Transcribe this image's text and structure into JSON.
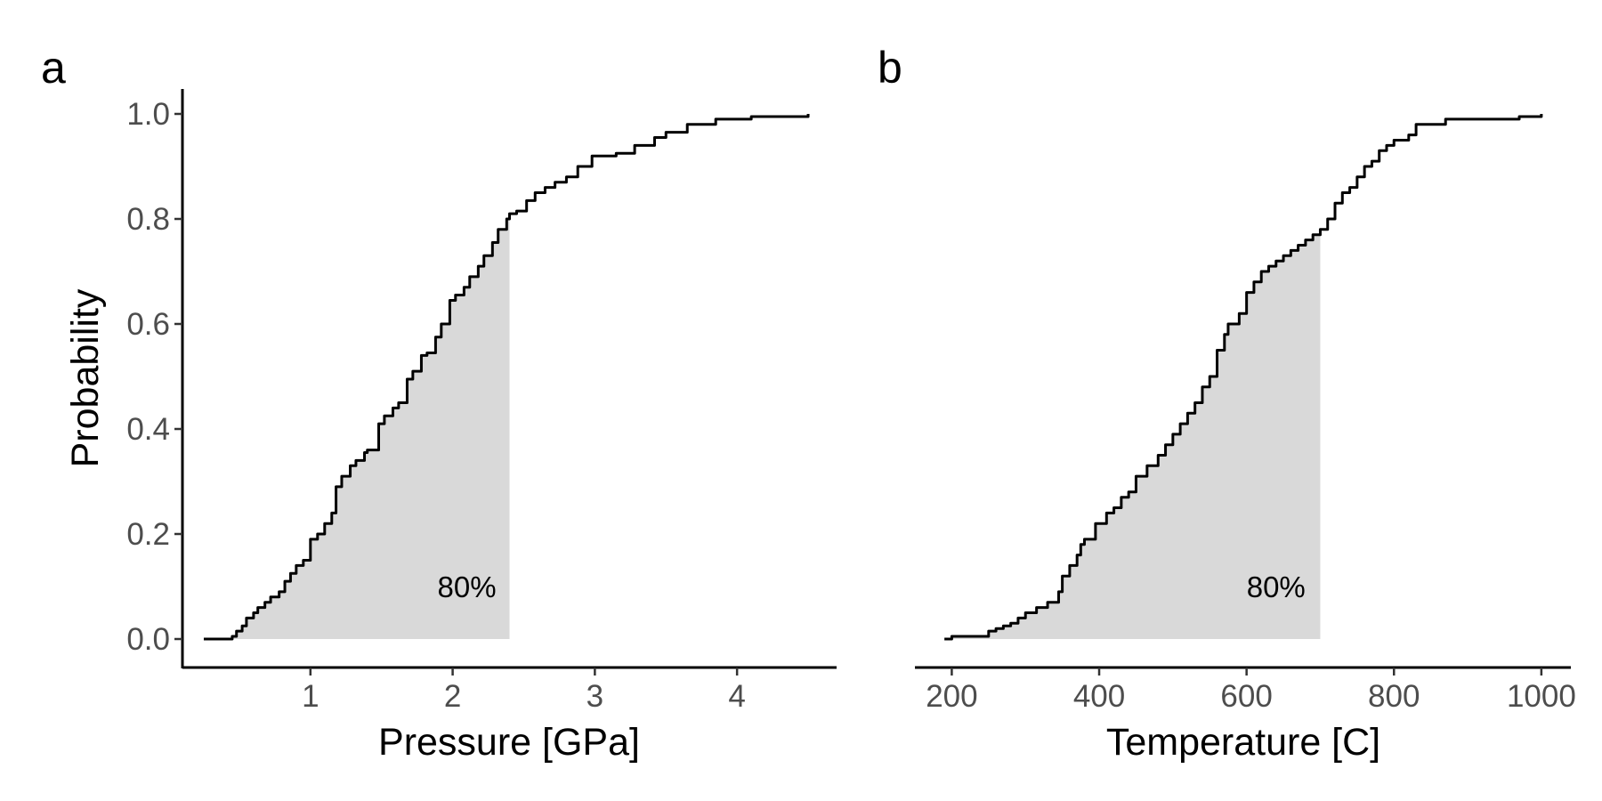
{
  "chart_data": [
    {
      "type": "line",
      "panel": "a",
      "xlabel": "Pressure [GPa]",
      "ylabel": "Probability",
      "xlim": [
        0.1,
        4.7
      ],
      "ylim": [
        -0.05,
        1.05
      ],
      "xticks": [
        1,
        2,
        3,
        4
      ],
      "xtick_labels": [
        "1",
        "2",
        "3",
        "4"
      ],
      "yticks": [
        0.0,
        0.2,
        0.4,
        0.6,
        0.8,
        1.0
      ],
      "ytick_labels": [
        "0.0",
        "0.2",
        "0.4",
        "0.6",
        "0.8",
        "1.0"
      ],
      "step": true,
      "fill_to_x": 2.4,
      "fill_color": "#d9d9d9",
      "annotation": {
        "text": "80%",
        "x": 2.1,
        "y": 0.1
      },
      "series": [
        {
          "x": [
            0.25,
            0.45,
            0.48,
            0.52,
            0.55,
            0.6,
            0.63,
            0.68,
            0.72,
            0.78,
            0.82,
            0.86,
            0.9,
            0.95,
            1.0,
            1.05,
            1.1,
            1.15,
            1.18,
            1.22,
            1.28,
            1.32,
            1.38,
            1.4,
            1.48,
            1.52,
            1.58,
            1.62,
            1.68,
            1.72,
            1.78,
            1.82,
            1.88,
            1.92,
            1.98,
            2.02,
            2.08,
            2.12,
            2.18,
            2.22,
            2.28,
            2.32,
            2.38,
            2.4,
            2.45,
            2.52,
            2.58,
            2.65,
            2.72,
            2.8,
            2.88,
            2.98,
            3.15,
            3.28,
            3.42,
            3.5,
            3.65,
            3.85,
            4.1,
            4.5
          ],
          "y": [
            0.0,
            0.005,
            0.015,
            0.025,
            0.04,
            0.05,
            0.06,
            0.07,
            0.08,
            0.09,
            0.11,
            0.125,
            0.14,
            0.15,
            0.19,
            0.2,
            0.22,
            0.24,
            0.29,
            0.31,
            0.33,
            0.34,
            0.355,
            0.36,
            0.41,
            0.425,
            0.44,
            0.45,
            0.495,
            0.51,
            0.54,
            0.545,
            0.575,
            0.6,
            0.645,
            0.655,
            0.67,
            0.69,
            0.71,
            0.73,
            0.755,
            0.78,
            0.8,
            0.81,
            0.815,
            0.835,
            0.85,
            0.86,
            0.87,
            0.88,
            0.9,
            0.92,
            0.925,
            0.94,
            0.955,
            0.965,
            0.98,
            0.99,
            0.995,
            1.0
          ]
        }
      ]
    },
    {
      "type": "line",
      "panel": "b",
      "xlabel": "Temperature [C]",
      "ylabel": "",
      "xlim": [
        150,
        1040
      ],
      "ylim": [
        -0.05,
        1.05
      ],
      "xticks": [
        200,
        400,
        600,
        800,
        1000
      ],
      "xtick_labels": [
        "200",
        "400",
        "600",
        "800",
        "1000"
      ],
      "yticks": [],
      "ytick_labels": [],
      "step": true,
      "fill_to_x": 700,
      "fill_color": "#d9d9d9",
      "annotation": {
        "text": "80%",
        "x": 640,
        "y": 0.1
      },
      "series": [
        {
          "x": [
            190,
            200,
            250,
            260,
            270,
            280,
            290,
            300,
            315,
            330,
            345,
            350,
            360,
            370,
            375,
            380,
            395,
            410,
            420,
            430,
            440,
            450,
            465,
            480,
            490,
            500,
            510,
            520,
            530,
            540,
            550,
            560,
            570,
            575,
            590,
            600,
            610,
            620,
            630,
            640,
            650,
            660,
            670,
            680,
            690,
            700,
            710,
            720,
            730,
            740,
            750,
            760,
            770,
            780,
            790,
            800,
            820,
            830,
            870,
            970,
            1000
          ],
          "y": [
            0.0,
            0.005,
            0.015,
            0.02,
            0.025,
            0.03,
            0.04,
            0.05,
            0.06,
            0.07,
            0.09,
            0.12,
            0.14,
            0.16,
            0.18,
            0.19,
            0.22,
            0.24,
            0.25,
            0.27,
            0.28,
            0.31,
            0.33,
            0.35,
            0.37,
            0.39,
            0.41,
            0.43,
            0.45,
            0.48,
            0.5,
            0.55,
            0.58,
            0.6,
            0.62,
            0.66,
            0.68,
            0.7,
            0.71,
            0.72,
            0.73,
            0.74,
            0.75,
            0.76,
            0.77,
            0.78,
            0.8,
            0.83,
            0.85,
            0.86,
            0.88,
            0.9,
            0.91,
            0.93,
            0.94,
            0.95,
            0.96,
            0.98,
            0.99,
            0.995,
            1.0
          ]
        }
      ]
    }
  ],
  "panels": {
    "a": {
      "letter": "a"
    },
    "b": {
      "letter": "b"
    }
  }
}
